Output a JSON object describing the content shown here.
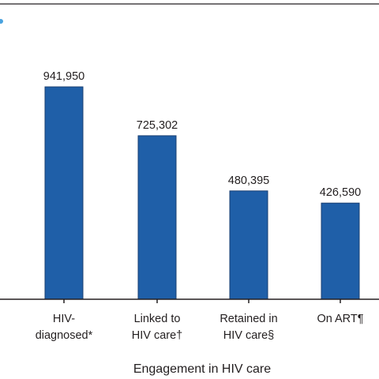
{
  "chart_data": {
    "type": "bar",
    "categories": [
      [
        "HIV-",
        "diagnosed*"
      ],
      [
        "Linked to",
        "HIV care†"
      ],
      [
        "Retained in",
        "HIV care§"
      ],
      [
        "On ART¶"
      ]
    ],
    "values": [
      941950,
      725302,
      480395,
      426590
    ],
    "value_labels": [
      "941,950",
      "725,302",
      "480,395",
      "426,590"
    ],
    "xlabel": "Engagement in HIV care",
    "ylabel": "",
    "ylim": [
      0,
      1200000
    ],
    "grid": false,
    "bar_color": "#1f5fa8"
  }
}
